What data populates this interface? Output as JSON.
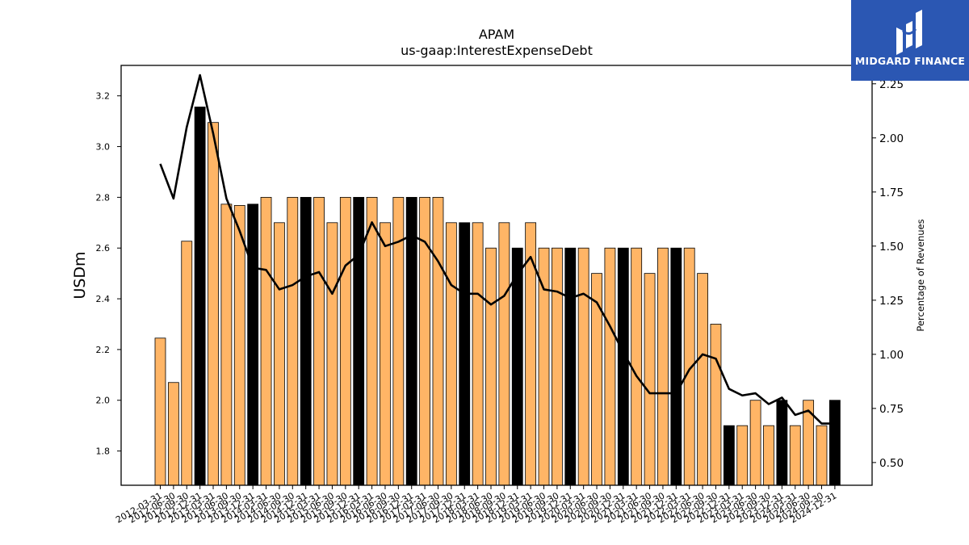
{
  "chart_data": {
    "type": "bar",
    "title": "APAM",
    "subtitle": "us-gaap:InterestExpenseDebt",
    "ylabel": "USDm",
    "y2label": "Percentage of Revenues",
    "ylim": [
      1.665,
      3.32
    ],
    "y2lim": [
      0.395,
      2.335
    ],
    "yticks": [
      "1.8",
      "2.0",
      "2.2",
      "2.4",
      "2.6",
      "2.8",
      "3.0",
      "3.2"
    ],
    "y2ticks": [
      "0.50",
      "0.75",
      "1.00",
      "1.25",
      "1.50",
      "1.75",
      "2.00",
      "2.25"
    ],
    "grid": false,
    "colors": {
      "bar": "#ffb566",
      "bar_year_end": "#000000",
      "line": "#000000"
    },
    "categories": [
      "2012-03-31",
      "2012-06-30",
      "2012-09-30",
      "2012-12-31",
      "2013-03-31",
      "2013-06-30",
      "2013-09-30",
      "2013-12-31",
      "2014-03-31",
      "2014-06-30",
      "2014-09-30",
      "2014-12-31",
      "2015-03-31",
      "2015-06-30",
      "2015-09-30",
      "2015-12-31",
      "2016-03-31",
      "2016-06-30",
      "2016-09-30",
      "2016-12-31",
      "2017-03-31",
      "2017-06-30",
      "2017-09-30",
      "2017-12-31",
      "2018-03-31",
      "2018-06-30",
      "2018-09-30",
      "2018-12-31",
      "2019-03-31",
      "2019-06-30",
      "2019-09-30",
      "2019-12-31",
      "2020-03-31",
      "2020-06-30",
      "2020-09-30",
      "2020-12-31",
      "2021-03-31",
      "2021-06-30",
      "2021-09-30",
      "2021-12-31",
      "2022-03-31",
      "2022-06-30",
      "2022-09-30",
      "2022-12-31",
      "2023-03-31",
      "2023-06-30",
      "2023-09-30",
      "2023-12-31",
      "2024-03-31",
      "2024-06-30",
      "2024-09-30",
      "2024-12-31"
    ],
    "series": [
      {
        "type": "bar",
        "axis": "left",
        "values": [
          2.245,
          2.07,
          2.627,
          3.156,
          3.095,
          2.773,
          2.768,
          2.773,
          2.8,
          2.7,
          2.8,
          2.8,
          2.8,
          2.7,
          2.8,
          2.8,
          2.8,
          2.7,
          2.8,
          2.8,
          2.8,
          2.8,
          2.7,
          2.7,
          2.7,
          2.6,
          2.7,
          2.6,
          2.7,
          2.6,
          2.6,
          2.6,
          2.6,
          2.5,
          2.6,
          2.6,
          2.6,
          2.5,
          2.6,
          2.6,
          2.6,
          2.5,
          2.3,
          1.9,
          1.9,
          2.0,
          1.9,
          2.0,
          1.9,
          2.0,
          1.9,
          2.0
        ]
      },
      {
        "type": "line",
        "axis": "right",
        "values": [
          1.88,
          1.72,
          2.05,
          2.29,
          2.02,
          1.72,
          1.57,
          1.4,
          1.39,
          1.3,
          1.32,
          1.36,
          1.38,
          1.28,
          1.41,
          1.46,
          1.61,
          1.5,
          1.52,
          1.55,
          1.52,
          1.43,
          1.32,
          1.28,
          1.28,
          1.23,
          1.27,
          1.37,
          1.45,
          1.3,
          1.29,
          1.26,
          1.28,
          1.24,
          1.13,
          1.01,
          0.9,
          0.82,
          0.82,
          0.82,
          0.93,
          1.0,
          0.98,
          0.84,
          0.81,
          0.82,
          0.77,
          0.8,
          0.72,
          0.74,
          0.68,
          0.68
        ]
      }
    ]
  },
  "logo": {
    "text": "MIDGARD FINANCE"
  }
}
